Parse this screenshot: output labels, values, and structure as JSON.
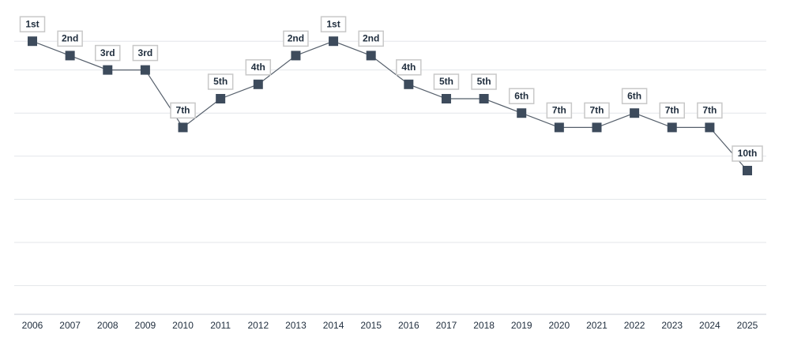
{
  "chart_data": {
    "type": "line",
    "categories": [
      "2006",
      "2007",
      "2008",
      "2009",
      "2010",
      "2011",
      "2012",
      "2013",
      "2014",
      "2015",
      "2016",
      "2017",
      "2018",
      "2019",
      "2020",
      "2021",
      "2022",
      "2023",
      "2024",
      "2025"
    ],
    "values": [
      1,
      2,
      3,
      3,
      7,
      5,
      4,
      2,
      1,
      2,
      4,
      5,
      5,
      6,
      7,
      7,
      6,
      7,
      7,
      10
    ],
    "value_labels": [
      "1st",
      "2nd",
      "3rd",
      "3rd",
      "7th",
      "5th",
      "4th",
      "2nd",
      "1st",
      "2nd",
      "4th",
      "5th",
      "5th",
      "6th",
      "7th",
      "7th",
      "6th",
      "7th",
      "7th",
      "10th"
    ],
    "color": "#3d4b5c",
    "ylim": [
      20,
      0
    ],
    "yticks": [
      1,
      3,
      6,
      9,
      12,
      15,
      18
    ],
    "grid": true
  }
}
